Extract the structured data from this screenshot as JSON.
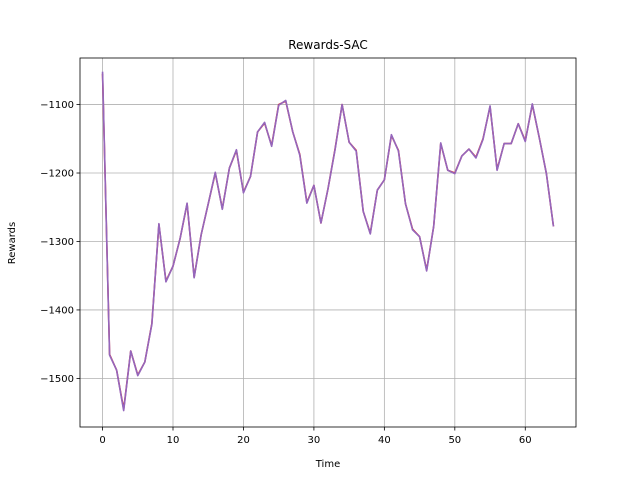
{
  "chart_data": {
    "type": "line",
    "title": "Rewards-SAC",
    "xlabel": "Time",
    "ylabel": "Rewards",
    "xlim": [
      -3.2,
      67.2
    ],
    "ylim": [
      -1571,
      -1032
    ],
    "xticks": [
      0,
      10,
      20,
      30,
      40,
      50,
      60
    ],
    "yticks": [
      -1500,
      -1400,
      -1300,
      -1200,
      -1100
    ],
    "ytick_labels": [
      "−1500",
      "−1400",
      "−1300",
      "−1200",
      "−1100"
    ],
    "grid": true,
    "series_color": "#7f7f7f",
    "series": [
      {
        "color": "#d62728",
        "x": [
          0,
          1,
          2,
          3,
          4,
          5,
          6,
          7,
          8,
          9,
          10,
          11,
          12,
          13,
          14,
          15,
          16,
          17,
          18,
          19,
          20,
          21,
          22,
          23,
          24,
          25,
          26,
          27,
          28,
          29,
          30,
          31,
          32,
          33,
          34,
          35,
          36,
          37,
          38,
          39,
          40,
          41,
          42,
          43,
          44,
          45,
          46,
          47,
          48,
          49,
          50,
          51,
          52,
          53,
          54,
          55,
          56,
          57,
          58,
          59,
          60,
          61,
          62,
          63,
          64
        ],
        "values": [
          -1055,
          -1465,
          -1488,
          -1545,
          -1460,
          -1495,
          -1476,
          -1420,
          -1275,
          -1358,
          -1336,
          -1296,
          -1245,
          -1352,
          -1290,
          -1245,
          -1200,
          -1252,
          -1193,
          -1167,
          -1228,
          -1205,
          -1140,
          -1127,
          -1160,
          -1100,
          -1095,
          -1140,
          -1173,
          -1243,
          -1218,
          -1273,
          -1223,
          -1165,
          -1100,
          -1155,
          -1167,
          -1256,
          -1288,
          -1225,
          -1210,
          -1145,
          -1167,
          -1245,
          -1282,
          -1293,
          -1342,
          -1278,
          -1157,
          -1196,
          -1200,
          -1175,
          -1165,
          -1177,
          -1150,
          -1103,
          -1195,
          -1157,
          -1157,
          -1128,
          -1153,
          -1100,
          -1149,
          -1201,
          -1278
        ]
      },
      {
        "color": "#9467bd",
        "x": [
          0,
          1,
          2,
          3,
          4,
          5,
          6,
          7,
          8,
          9,
          10,
          11,
          12,
          13,
          14,
          15,
          16,
          17,
          18,
          19,
          20,
          21,
          22,
          23,
          24,
          25,
          26,
          27,
          28,
          29,
          30,
          31,
          32,
          33,
          34,
          35,
          36,
          37,
          38,
          39,
          40,
          41,
          42,
          43,
          44,
          45,
          46,
          47,
          48,
          49,
          50,
          51,
          52,
          53,
          54,
          55,
          56,
          57,
          58,
          59,
          60,
          61,
          62,
          63,
          64
        ],
        "values": [
          -1052,
          -1466,
          -1488,
          -1547,
          -1460,
          -1496,
          -1476,
          -1421,
          -1274,
          -1359,
          -1336,
          -1296,
          -1244,
          -1353,
          -1290,
          -1245,
          -1199,
          -1253,
          -1193,
          -1166,
          -1229,
          -1205,
          -1140,
          -1126,
          -1161,
          -1101,
          -1094,
          -1140,
          -1174,
          -1244,
          -1218,
          -1273,
          -1223,
          -1166,
          -1100,
          -1155,
          -1168,
          -1256,
          -1289,
          -1225,
          -1210,
          -1144,
          -1168,
          -1245,
          -1283,
          -1293,
          -1343,
          -1278,
          -1156,
          -1196,
          -1201,
          -1175,
          -1165,
          -1178,
          -1151,
          -1102,
          -1196,
          -1157,
          -1157,
          -1128,
          -1154,
          -1099,
          -1149,
          -1201,
          -1278
        ]
      }
    ]
  }
}
